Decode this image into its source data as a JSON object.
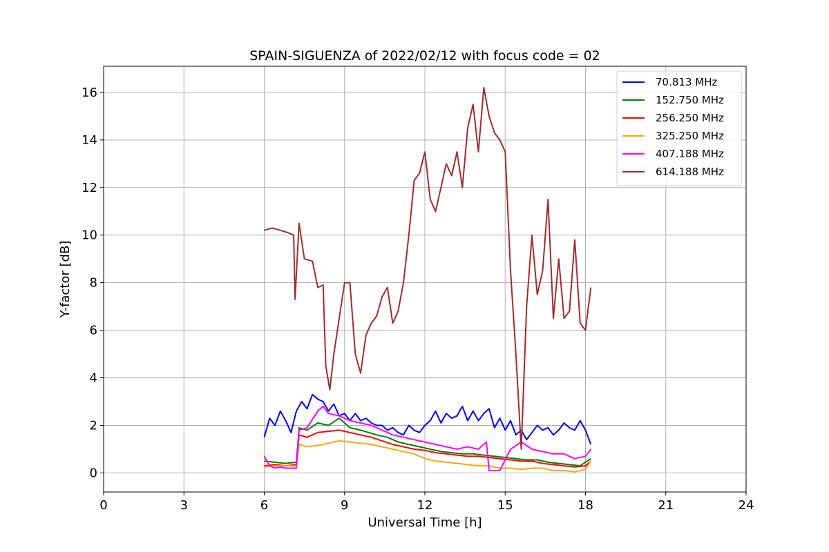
{
  "chart_data": {
    "type": "line",
    "title": "SPAIN-SIGUENZA of 2022/02/12 with focus code = 02",
    "xlabel": "Universal Time [h]",
    "ylabel": "Y-factor [dB]",
    "xlim": [
      0,
      24
    ],
    "ylim": [
      -0.8,
      17.1
    ],
    "xticks": [
      0,
      3,
      6,
      9,
      12,
      15,
      18,
      21,
      24
    ],
    "yticks": [
      0,
      2,
      4,
      6,
      8,
      10,
      12,
      14,
      16
    ],
    "grid": true,
    "legend_position": "top-right",
    "series": [
      {
        "name": "  70.813 MHz",
        "color": "#0000ff",
        "x": [
          6.0,
          6.2,
          6.4,
          6.6,
          6.8,
          7.0,
          7.2,
          7.4,
          7.6,
          7.8,
          8.0,
          8.2,
          8.4,
          8.6,
          8.8,
          9.0,
          9.2,
          9.4,
          9.6,
          9.8,
          10.0,
          10.2,
          10.4,
          10.6,
          10.8,
          11.0,
          11.2,
          11.4,
          11.6,
          11.8,
          12.0,
          12.2,
          12.4,
          12.6,
          12.8,
          13.0,
          13.2,
          13.4,
          13.6,
          13.8,
          14.0,
          14.2,
          14.4,
          14.6,
          14.8,
          15.0,
          15.2,
          15.4,
          15.6,
          15.8,
          16.0,
          16.2,
          16.4,
          16.6,
          16.8,
          17.0,
          17.2,
          17.4,
          17.6,
          17.8,
          18.0,
          18.2
        ],
        "y": [
          1.5,
          2.3,
          2.0,
          2.6,
          2.2,
          1.7,
          2.6,
          3.0,
          2.7,
          3.3,
          3.1,
          3.0,
          2.6,
          2.9,
          2.4,
          2.5,
          2.2,
          2.5,
          2.2,
          2.3,
          2.1,
          2.0,
          2.0,
          1.8,
          1.9,
          1.7,
          1.6,
          2.0,
          1.8,
          1.7,
          2.0,
          2.2,
          2.6,
          2.1,
          2.5,
          2.3,
          2.4,
          2.8,
          2.2,
          2.6,
          2.2,
          2.5,
          2.7,
          1.9,
          2.3,
          1.8,
          2.2,
          1.6,
          1.8,
          1.4,
          1.7,
          2.0,
          1.8,
          1.9,
          1.6,
          1.8,
          2.1,
          1.9,
          1.8,
          2.2,
          1.8,
          1.2
        ]
      },
      {
        "name": "152.750 MHz",
        "color": "#008000",
        "x": [
          6.0,
          6.4,
          6.8,
          7.2,
          7.3,
          7.6,
          8.0,
          8.4,
          8.8,
          9.2,
          9.6,
          9.9,
          10.2,
          10.6,
          11.0,
          11.4,
          11.8,
          12.2,
          12.6,
          13.0,
          13.4,
          13.8,
          14.2,
          14.6,
          15.0,
          15.4,
          15.8,
          16.2,
          16.6,
          17.0,
          17.4,
          17.8,
          18.2
        ],
        "y": [
          0.5,
          0.45,
          0.4,
          0.45,
          1.9,
          1.8,
          2.1,
          2.0,
          2.3,
          1.9,
          1.8,
          1.7,
          1.6,
          1.5,
          1.3,
          1.2,
          1.1,
          1.0,
          0.9,
          0.85,
          0.8,
          0.8,
          0.75,
          0.7,
          0.65,
          0.6,
          0.55,
          0.55,
          0.45,
          0.4,
          0.35,
          0.3,
          0.6
        ]
      },
      {
        "name": "256.250 MHz",
        "color": "#ff0000",
        "x": [
          6.0,
          6.4,
          6.8,
          7.2,
          7.3,
          7.6,
          8.0,
          8.4,
          8.8,
          9.2,
          9.6,
          10.0,
          10.4,
          10.8,
          11.2,
          11.6,
          12.0,
          12.4,
          12.8,
          13.2,
          13.6,
          14.0,
          14.4,
          14.8,
          15.2,
          15.6,
          16.0,
          16.4,
          16.8,
          17.2,
          17.6,
          18.0,
          18.2
        ],
        "y": [
          0.3,
          0.35,
          0.3,
          0.35,
          1.6,
          1.5,
          1.7,
          1.75,
          1.8,
          1.7,
          1.6,
          1.5,
          1.35,
          1.2,
          1.1,
          1.0,
          0.95,
          0.85,
          0.8,
          0.75,
          0.7,
          0.7,
          0.65,
          0.6,
          0.55,
          0.5,
          0.5,
          0.4,
          0.35,
          0.3,
          0.25,
          0.3,
          0.5
        ]
      },
      {
        "name": "325.250 MHz",
        "color": "#ffa500",
        "x": [
          6.0,
          6.4,
          6.8,
          7.2,
          7.3,
          7.6,
          8.0,
          8.4,
          8.8,
          9.2,
          9.6,
          10.0,
          10.4,
          10.8,
          11.2,
          11.6,
          12.0,
          12.4,
          12.8,
          13.2,
          13.6,
          14.0,
          14.4,
          14.8,
          15.2,
          15.6,
          16.0,
          16.4,
          16.8,
          17.2,
          17.6,
          18.0,
          18.2
        ],
        "y": [
          0.25,
          0.3,
          0.3,
          0.3,
          1.2,
          1.1,
          1.15,
          1.25,
          1.35,
          1.3,
          1.25,
          1.2,
          1.1,
          1.0,
          0.9,
          0.8,
          0.6,
          0.5,
          0.45,
          0.4,
          0.35,
          0.3,
          0.3,
          0.2,
          0.2,
          0.15,
          0.2,
          0.2,
          0.1,
          0.1,
          0.05,
          0.15,
          0.5
        ]
      },
      {
        "name": "407.188 MHz",
        "color": "#ff00ff",
        "x": [
          6.0,
          6.2,
          6.4,
          6.6,
          6.8,
          7.0,
          7.2,
          7.3,
          7.6,
          8.0,
          8.2,
          8.4,
          8.8,
          9.2,
          9.6,
          10.0,
          10.4,
          10.8,
          11.2,
          11.6,
          12.0,
          12.4,
          12.8,
          13.2,
          13.6,
          14.0,
          14.3,
          14.4,
          14.8,
          15.2,
          15.6,
          16.0,
          16.4,
          16.8,
          17.2,
          17.6,
          18.0,
          18.2
        ],
        "y": [
          0.7,
          0.3,
          0.2,
          0.25,
          0.2,
          0.2,
          0.2,
          1.8,
          1.9,
          2.6,
          2.8,
          2.5,
          2.4,
          2.2,
          2.1,
          2.0,
          1.8,
          1.6,
          1.5,
          1.4,
          1.3,
          1.2,
          1.1,
          1.0,
          1.1,
          1.0,
          1.3,
          0.1,
          0.1,
          1.0,
          1.3,
          1.0,
          0.9,
          0.8,
          0.8,
          0.6,
          0.7,
          1.0
        ]
      },
      {
        "name": "614.188 MHz",
        "color": "#a52a2a",
        "x": [
          6.0,
          6.3,
          6.6,
          6.9,
          7.1,
          7.15,
          7.3,
          7.5,
          7.8,
          8.0,
          8.2,
          8.3,
          8.45,
          8.6,
          8.8,
          9.0,
          9.2,
          9.4,
          9.6,
          9.8,
          10.0,
          10.2,
          10.4,
          10.6,
          10.8,
          11.0,
          11.2,
          11.4,
          11.6,
          11.8,
          12.0,
          12.2,
          12.4,
          12.6,
          12.8,
          13.0,
          13.2,
          13.4,
          13.6,
          13.8,
          14.0,
          14.2,
          14.4,
          14.6,
          14.8,
          15.0,
          15.2,
          15.4,
          15.6,
          15.8,
          16.0,
          16.2,
          16.4,
          16.6,
          16.8,
          17.0,
          17.2,
          17.4,
          17.6,
          17.8,
          18.0,
          18.2
        ],
        "y": [
          10.2,
          10.3,
          10.2,
          10.1,
          10.0,
          7.3,
          10.5,
          9.0,
          8.9,
          7.8,
          7.9,
          4.5,
          3.5,
          5.0,
          6.5,
          8.0,
          8.0,
          5.0,
          4.2,
          5.8,
          6.3,
          6.6,
          7.4,
          7.8,
          6.3,
          6.8,
          8.0,
          10.0,
          12.3,
          12.6,
          13.5,
          11.5,
          11.0,
          12.0,
          13.0,
          12.5,
          13.5,
          12.0,
          14.5,
          15.5,
          13.5,
          16.2,
          15.0,
          14.3,
          14.0,
          13.5,
          8.5,
          5.0,
          1.0,
          7.0,
          10.0,
          7.5,
          8.5,
          11.5,
          6.5,
          9.0,
          6.5,
          6.8,
          9.8,
          6.3,
          6.0,
          7.8
        ]
      }
    ]
  }
}
